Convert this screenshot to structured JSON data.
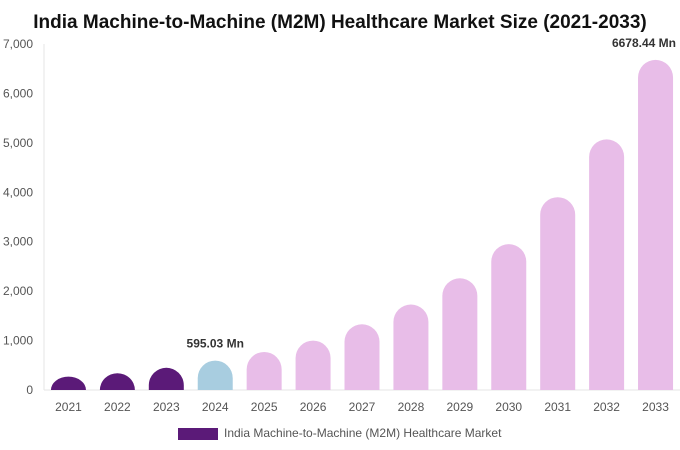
{
  "chart_data": {
    "type": "bar",
    "title": "India Machine-to-Machine (M2M) Healthcare Market Size (2021-2033)",
    "categories": [
      "2021",
      "2022",
      "2023",
      "2024",
      "2025",
      "2026",
      "2027",
      "2028",
      "2029",
      "2030",
      "2031",
      "2032",
      "2033"
    ],
    "series": [
      {
        "name": "India Machine-to-Machine (M2M) Healthcare Market",
        "values": [
          270,
          340,
          450,
          595.03,
          770,
          1000,
          1330,
          1730,
          2260,
          2950,
          3900,
          5070,
          6678.44
        ]
      }
    ],
    "ylim": [
      0,
      7000
    ],
    "yticks": [
      "0",
      "1,000",
      "2,000",
      "3,000",
      "4,000",
      "5,000",
      "6,000",
      "7,000"
    ],
    "data_labels": [
      {
        "category": "2024",
        "text": "595.03 Mn"
      },
      {
        "category": "2033",
        "text": "6678.44 Mn"
      }
    ],
    "bar_colors": {
      "historical": "#5b1a78",
      "base_year": "#a8cde0",
      "forecast": "#e8bde8"
    },
    "historical_years": [
      "2021",
      "2022",
      "2023"
    ],
    "base_year": "2024",
    "legend_color": "#5b1a78",
    "legend_position": "bottom-center",
    "grid": false
  }
}
